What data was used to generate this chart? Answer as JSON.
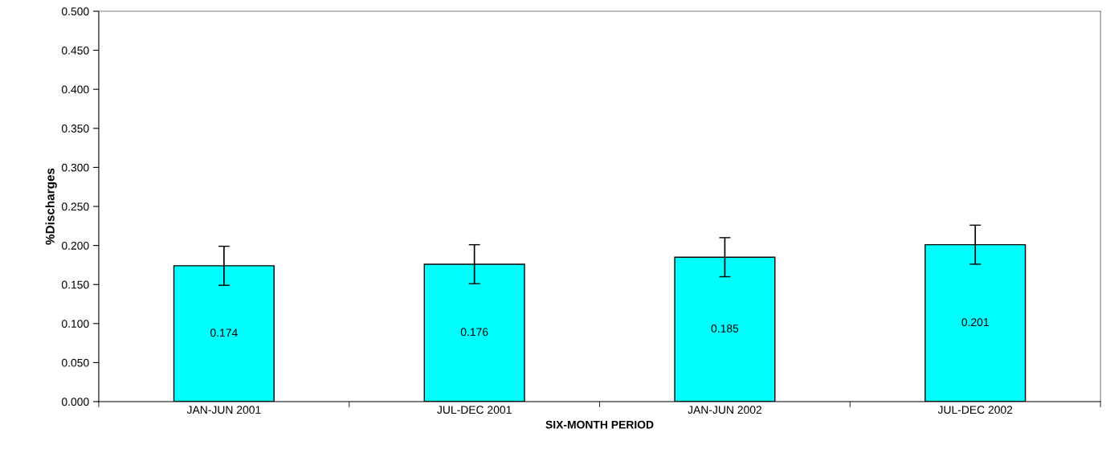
{
  "chart_data": {
    "type": "bar",
    "xlabel": "SIX-MONTH PERIOD",
    "ylabel": "%Discharges",
    "categories": [
      "JAN-JUN 2001",
      "JUL-DEC 2001",
      "JAN-JUN 2002",
      "JUL-DEC 2002"
    ],
    "values": [
      0.174,
      0.176,
      0.185,
      0.201
    ],
    "errors": [
      0.025,
      0.025,
      0.025,
      0.025
    ],
    "color": "#00ffff",
    "data_labels": true,
    "grid": false,
    "legend": false,
    "ylim": [
      0,
      0.5
    ],
    "yticks": [
      {
        "value": 0,
        "label": "0.000"
      },
      {
        "value": 0.05,
        "label": "0.050"
      },
      {
        "value": 0.1,
        "label": "0.100"
      },
      {
        "value": 0.15,
        "label": "0.150"
      },
      {
        "value": 0.2,
        "label": "0.200"
      },
      {
        "value": 0.25,
        "label": "0.250"
      },
      {
        "value": 0.3,
        "label": "0.300"
      },
      {
        "value": 0.35,
        "label": "0.350"
      },
      {
        "value": 0.4,
        "label": "0.400"
      },
      {
        "value": 0.45,
        "label": "0.450"
      },
      {
        "value": 0.5,
        "label": "0.500"
      }
    ]
  }
}
